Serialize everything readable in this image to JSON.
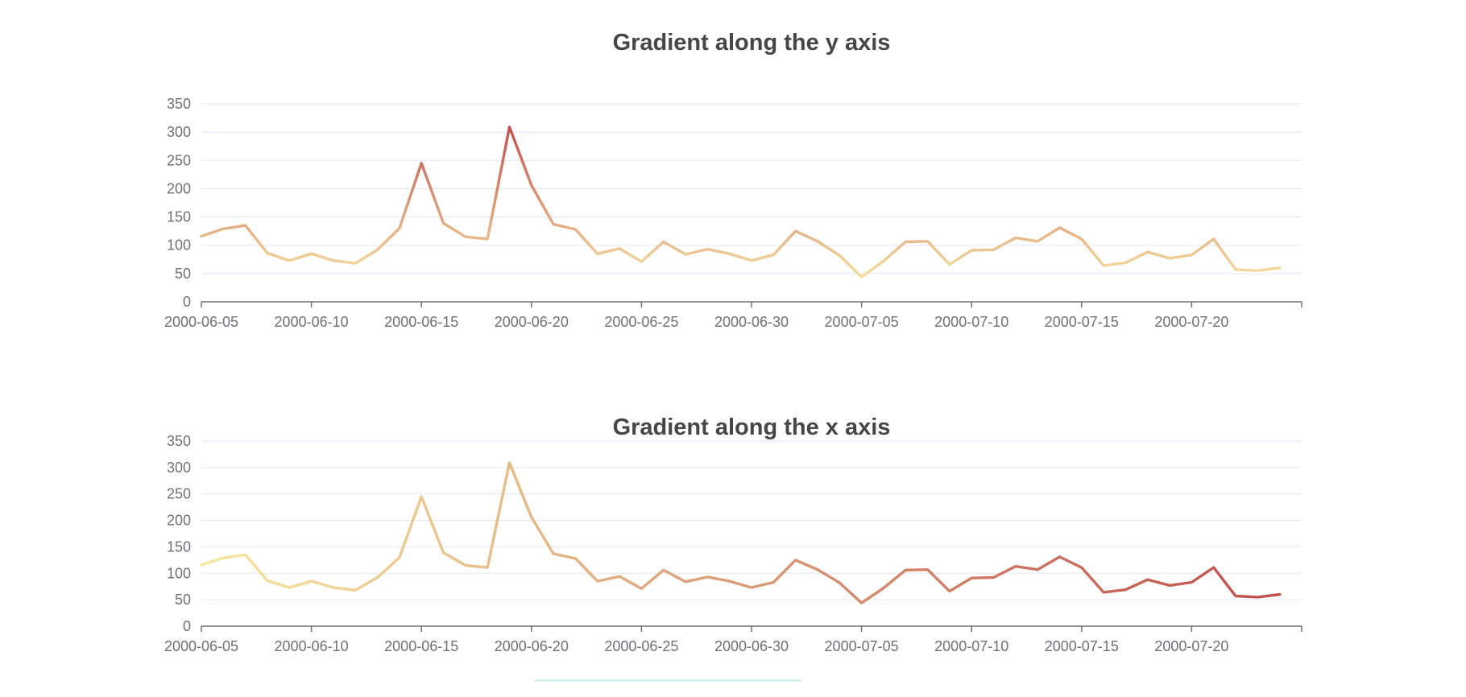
{
  "chart_data": [
    {
      "type": "line",
      "title": "Gradient along the y axis",
      "gradient": "y",
      "ylim": [
        0,
        350
      ],
      "yticks": [
        0,
        50,
        100,
        150,
        200,
        250,
        300,
        350
      ],
      "xlim": [
        "2000-06-05",
        "2000-07-25"
      ],
      "xticks": [
        "2000-06-05",
        "2000-06-10",
        "2000-06-15",
        "2000-06-20",
        "2000-06-25",
        "2000-06-30",
        "2000-07-05",
        "2000-07-10",
        "2000-07-15",
        "2000-07-20"
      ],
      "grid": true,
      "colors": {
        "low": "#f5dea0",
        "high": "#c0504d"
      }
    },
    {
      "type": "line",
      "title": "Gradient along the x axis",
      "gradient": "x",
      "ylim": [
        0,
        350
      ],
      "yticks": [
        0,
        50,
        100,
        150,
        200,
        250,
        300,
        350
      ],
      "xlim": [
        "2000-06-05",
        "2000-07-25"
      ],
      "xticks": [
        "2000-06-05",
        "2000-06-10",
        "2000-06-15",
        "2000-06-20",
        "2000-06-25",
        "2000-06-30",
        "2000-07-05",
        "2000-07-10",
        "2000-07-15",
        "2000-07-20"
      ],
      "grid": true,
      "colors": {
        "start": "#f5e6a0",
        "end": "#c0504d"
      }
    }
  ],
  "series": {
    "x": [
      "2000-06-05",
      "2000-06-06",
      "2000-06-07",
      "2000-06-08",
      "2000-06-09",
      "2000-06-10",
      "2000-06-11",
      "2000-06-12",
      "2000-06-13",
      "2000-06-14",
      "2000-06-15",
      "2000-06-16",
      "2000-06-17",
      "2000-06-18",
      "2000-06-19",
      "2000-06-20",
      "2000-06-21",
      "2000-06-22",
      "2000-06-23",
      "2000-06-24",
      "2000-06-25",
      "2000-06-26",
      "2000-06-27",
      "2000-06-28",
      "2000-06-29",
      "2000-06-30",
      "2000-07-01",
      "2000-07-02",
      "2000-07-03",
      "2000-07-04",
      "2000-07-05",
      "2000-07-06",
      "2000-07-07",
      "2000-07-08",
      "2000-07-09",
      "2000-07-10",
      "2000-07-11",
      "2000-07-12",
      "2000-07-13",
      "2000-07-14",
      "2000-07-15",
      "2000-07-16",
      "2000-07-17",
      "2000-07-18",
      "2000-07-19",
      "2000-07-20",
      "2000-07-21",
      "2000-07-22",
      "2000-07-23",
      "2000-07-24"
    ],
    "y": [
      116,
      129,
      135,
      86,
      73,
      85,
      73,
      68,
      92,
      130,
      245,
      139,
      115,
      111,
      309,
      206,
      137,
      128,
      85,
      94,
      71,
      106,
      84,
      93,
      85,
      73,
      83,
      125,
      107,
      82,
      44,
      72,
      106,
      107,
      66,
      91,
      92,
      113,
      107,
      131,
      111,
      64,
      69,
      88,
      77,
      83,
      111,
      57,
      55,
      60
    ]
  }
}
